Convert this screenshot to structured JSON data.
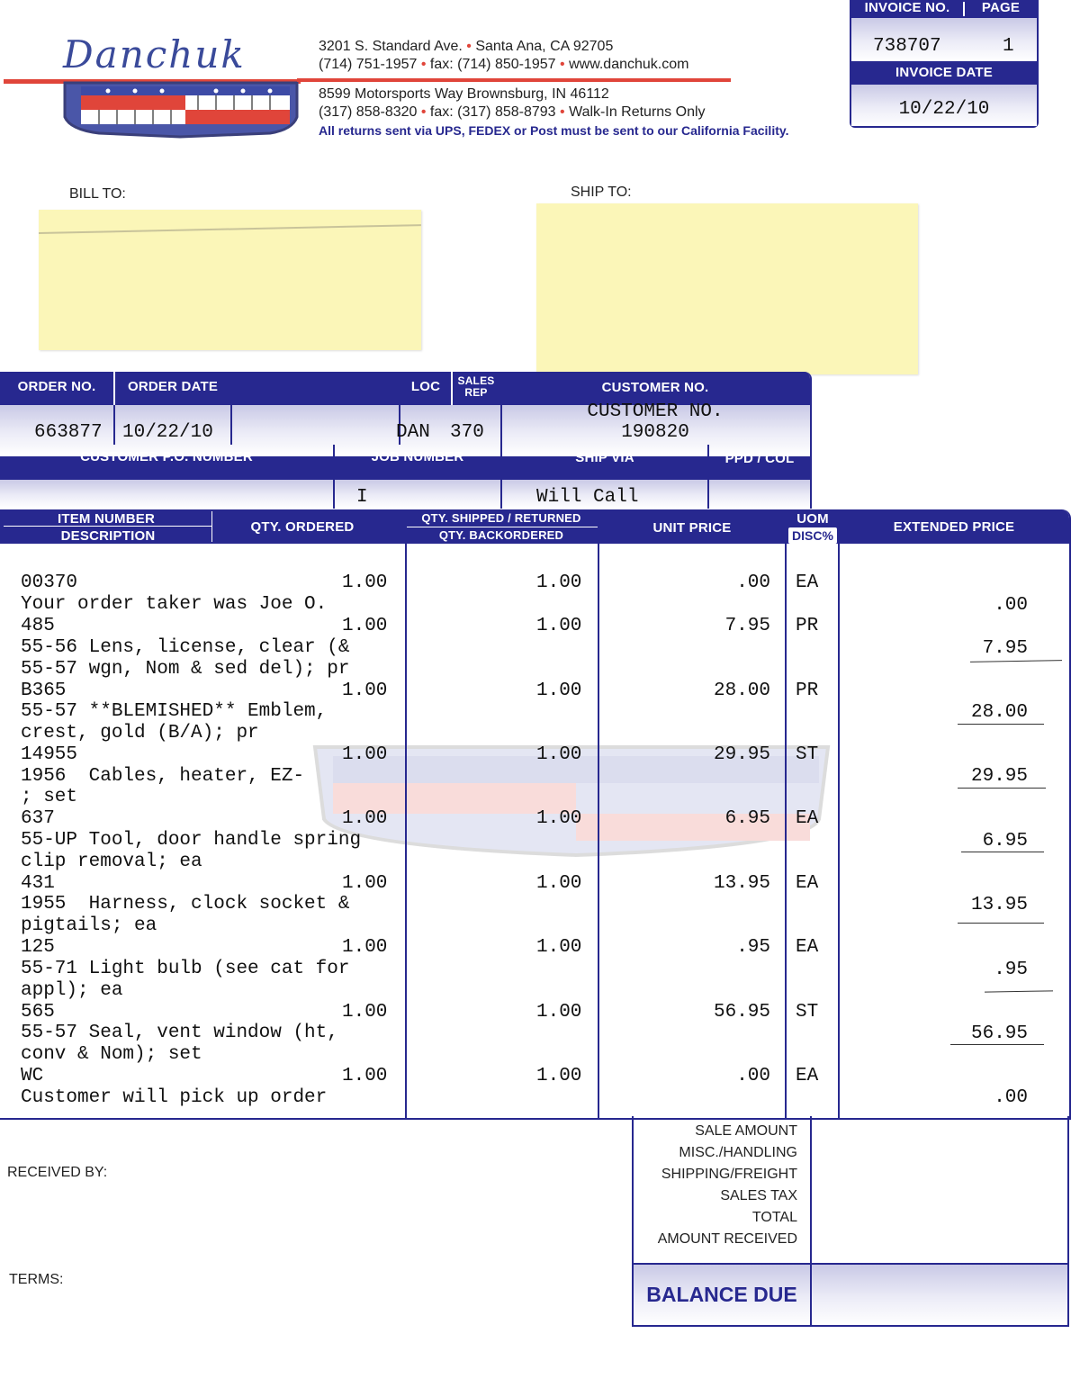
{
  "logo": {
    "text": "Danchuk"
  },
  "addresses": {
    "line1": "3201 S. Standard Ave.",
    "line1b": "Santa Ana, CA 92705",
    "line2a": "(714) 751-1957",
    "line2b": "fax: (714) 850-1957",
    "line2c": "www.danchuk.com",
    "line3": "8599 Motorsports Way  Brownsburg, IN 46112",
    "line4a": "(317) 858-8320",
    "line4b": "fax: (317) 858-8793",
    "line4c": "Walk-In Returns Only",
    "line5": "All returns sent via UPS, FEDEX or Post must be sent to our California Facility."
  },
  "invoice_box": {
    "invoice_no_label": "INVOICE NO.",
    "page_label": "PAGE",
    "invoice_no": "738707",
    "page": "1",
    "invoice_date_label": "INVOICE DATE",
    "invoice_date": "10/22/10"
  },
  "bill_to_label": "BILL TO:",
  "ship_to_label": "SHIP TO:",
  "order_header": {
    "order_no_label": "ORDER NO.",
    "order_date_label": "ORDER DATE",
    "loc_label": "LOC",
    "sales_rep_label": "SALES REP",
    "customer_no_label": "CUSTOMER NO.",
    "order_no": "663877",
    "order_date": "10/22/10",
    "loc": "DAN",
    "sales_rep": "370",
    "customer_no_heading": "CUSTOMER NO.",
    "customer_no": "190820",
    "customer_po_label": "CUSTOMER P.O. NUMBER",
    "job_number_label": "JOB NUMBER",
    "ship_via_label": "SHIP VIA",
    "ppd_col_label": "PPD / COL",
    "job_number": "I",
    "ship_via": "Will Call"
  },
  "items_header": {
    "item_number": "ITEM NUMBER",
    "description": "DESCRIPTION",
    "qty_ordered": "QTY. ORDERED",
    "qty_shipped": "QTY. SHIPPED / RETURNED",
    "qty_backordered": "QTY. BACKORDERED",
    "unit_price": "UNIT PRICE",
    "uom": "UOM",
    "disc": "DISC%",
    "extended_price": "EXTENDED PRICE"
  },
  "items": [
    {
      "item": "00370",
      "qty": "1.00",
      "shipped": "1.00",
      "unit": ".00",
      "uom": "EA",
      "desc": [
        "Your order taker was Joe O."
      ],
      "ext": ".00"
    },
    {
      "item": "485",
      "qty": "1.00",
      "shipped": "1.00",
      "unit": "7.95",
      "uom": "PR",
      "desc": [
        "55-56 Lens, license, clear (&",
        "55-57 wgn, Nom & sed del); pr"
      ],
      "ext": "7.95"
    },
    {
      "item": "B365",
      "qty": "1.00",
      "shipped": "1.00",
      "unit": "28.00",
      "uom": "PR",
      "desc": [
        "55-57 **BLEMISHED** Emblem,",
        "crest, gold (B/A); pr"
      ],
      "ext": "28.00"
    },
    {
      "item": "14955",
      "qty": "1.00",
      "shipped": "1.00",
      "unit": "29.95",
      "uom": "ST",
      "desc": [
        "1956  Cables, heater, EZ-",
        "; set"
      ],
      "ext": "29.95"
    },
    {
      "item": "637",
      "qty": "1.00",
      "shipped": "1.00",
      "unit": "6.95",
      "uom": "EA",
      "desc": [
        "55-UP Tool, door handle spring",
        "clip removal; ea"
      ],
      "ext": "6.95"
    },
    {
      "item": "431",
      "qty": "1.00",
      "shipped": "1.00",
      "unit": "13.95",
      "uom": "EA",
      "desc": [
        "1955  Harness, clock socket &",
        "pigtails; ea"
      ],
      "ext": "13.95"
    },
    {
      "item": "125",
      "qty": "1.00",
      "shipped": "1.00",
      "unit": ".95",
      "uom": "EA",
      "desc": [
        "55-71 Light bulb (see cat for",
        "appl); ea"
      ],
      "ext": ".95"
    },
    {
      "item": "565",
      "qty": "1.00",
      "shipped": "1.00",
      "unit": "56.95",
      "uom": "ST",
      "desc": [
        "55-57 Seal, vent window (ht,",
        "conv & Nom); set"
      ],
      "ext": "56.95"
    },
    {
      "item": "WC",
      "qty": "1.00",
      "shipped": "1.00",
      "unit": ".00",
      "uom": "EA",
      "desc": [
        "Customer will pick up order"
      ],
      "ext": ".00"
    }
  ],
  "totals": {
    "sale_amount": "SALE AMOUNT",
    "misc": "MISC./HANDLING",
    "shipping": "SHIPPING/FREIGHT",
    "tax": "SALES TAX",
    "total": "TOTAL",
    "received": "AMOUNT RECEIVED",
    "balance_due": "BALANCE DUE"
  },
  "received_by_label": "RECEIVED BY:",
  "terms_label": "TERMS:",
  "colors": {
    "navy": "#27288f",
    "red": "#e0453a",
    "note_yellow": "#fbf6b8"
  }
}
